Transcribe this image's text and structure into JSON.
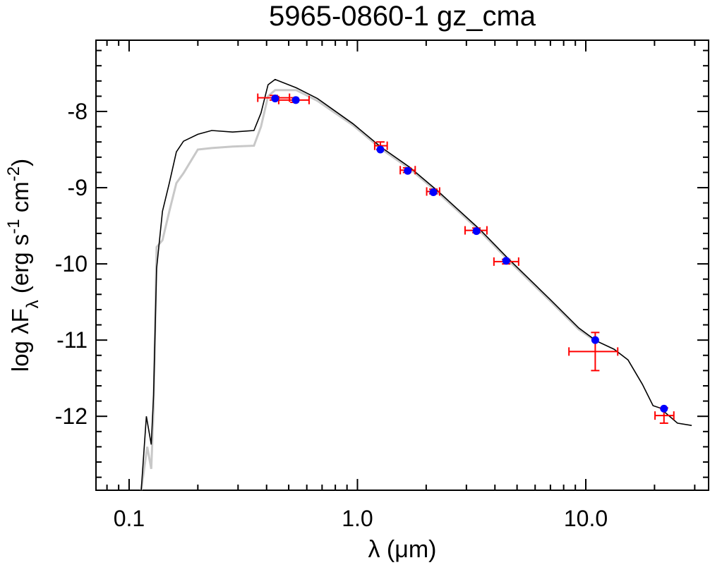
{
  "chart_data": {
    "type": "sed",
    "title": "5965-0860-1   gz_cma",
    "xlabel": "λ (μm)",
    "ylabel_parts": [
      "log λF",
      "λ",
      " (erg s",
      "-1",
      " cm",
      "-2",
      ")"
    ],
    "xscale": "log",
    "xlim": [
      0.0716,
      34.5
    ],
    "ylim": [
      -12.97,
      -7.065
    ],
    "xticks": [
      0.1,
      {
        "value": 1,
        "label": "1.0"
      },
      {
        "value": 10,
        "label": "10.0"
      }
    ],
    "yticks": [
      -8,
      -9,
      -10,
      -11,
      -12
    ],
    "xminor_ticks": [
      0.08,
      0.09,
      0.2,
      0.3,
      0.4,
      0.5,
      0.6,
      0.7,
      0.8,
      0.9,
      2,
      3,
      4,
      5,
      6,
      7,
      8,
      9,
      20,
      30
    ],
    "yminor_ticks": [
      -12.8,
      -12.6,
      -12.4,
      -12.2,
      -11.8,
      -11.6,
      -11.4,
      -11.2,
      -10.8,
      -10.6,
      -10.4,
      -10.2,
      -9.8,
      -9.6,
      -9.4,
      -9.2,
      -8.8,
      -8.6,
      -8.4,
      -8.2,
      -7.8,
      -7.6,
      -7.4,
      -7.2
    ],
    "model_spectra": [
      {
        "color": "#c8c8c8",
        "x": [
          0.113,
          0.12,
          0.125,
          0.128,
          0.132,
          0.14,
          0.15,
          0.161,
          0.173,
          0.2,
          0.23,
          0.284,
          0.352,
          0.378,
          0.406,
          0.436,
          0.54,
          0.668,
          0.955,
          1.27,
          1.69,
          2.24,
          3.44,
          4.57,
          7.0,
          9.31,
          11.1
        ],
        "values": [
          -12.97,
          -12.4,
          -12.69,
          -11.9,
          -9.78,
          -9.69,
          -9.31,
          -8.94,
          -8.81,
          -8.5,
          -8.48,
          -8.46,
          -8.45,
          -8.2,
          -7.8,
          -7.72,
          -7.72,
          -7.86,
          -8.18,
          -8.49,
          -8.75,
          -9.06,
          -9.57,
          -9.95,
          -10.49,
          -10.86,
          -11.02
        ]
      },
      {
        "color": "#000000",
        "x": [
          0.113,
          0.119,
          0.125,
          0.128,
          0.132,
          0.14,
          0.15,
          0.161,
          0.173,
          0.2,
          0.23,
          0.284,
          0.352,
          0.378,
          0.406,
          0.436,
          0.54,
          0.668,
          0.955,
          1.27,
          1.69,
          2.24,
          3.44,
          4.57,
          7.0,
          9.31,
          11.1,
          13.3,
          15.3,
          17.7,
          19.7,
          21.1,
          25.2,
          29.1
        ],
        "values": [
          -12.97,
          -12.0,
          -12.37,
          -11.72,
          -10.06,
          -9.31,
          -8.94,
          -8.53,
          -8.39,
          -8.3,
          -8.25,
          -8.27,
          -8.25,
          -8.02,
          -7.65,
          -7.58,
          -7.69,
          -7.83,
          -8.16,
          -8.47,
          -8.73,
          -9.04,
          -9.55,
          -9.93,
          -10.47,
          -10.84,
          -11.01,
          -11.12,
          -11.26,
          -11.58,
          -11.86,
          -11.89,
          -12.09,
          -12.12
        ]
      }
    ],
    "observed": {
      "color": "#ff0000",
      "x": [
        0.43,
        0.53,
        1.26,
        1.65,
        2.15,
        3.32,
        4.48,
        11.0,
        22.0
      ],
      "x_lo": [
        0.366,
        0.452,
        1.19,
        1.54,
        2.01,
        2.96,
        3.96,
        8.44,
        20.1
      ],
      "x_hi": [
        0.504,
        0.614,
        1.35,
        1.79,
        2.29,
        3.69,
        5.08,
        13.8,
        24.3
      ],
      "values": [
        -7.82,
        -7.85,
        -8.45,
        -8.77,
        -9.05,
        -9.56,
        -9.97,
        -11.15,
        -11.99
      ],
      "yerr": [
        0.03,
        0.03,
        0.05,
        0.03,
        0.03,
        0.03,
        0.03,
        0.25,
        0.1
      ]
    },
    "synthetic": {
      "color": "#0000ff",
      "x": [
        0.436,
        0.537,
        1.26,
        1.66,
        2.15,
        3.32,
        4.48,
        11.0,
        22.0
      ],
      "values": [
        -7.83,
        -7.85,
        -8.5,
        -8.78,
        -9.06,
        -9.57,
        -9.96,
        -11.0,
        -11.9
      ]
    }
  }
}
